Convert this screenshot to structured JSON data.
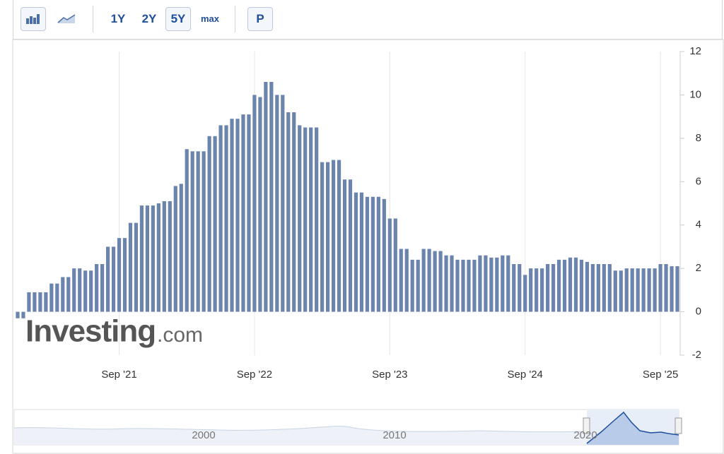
{
  "toolbar": {
    "buttons": [
      "1Y",
      "2Y",
      "5Y",
      "max",
      "P"
    ]
  },
  "watermark": {
    "brand": "Investing",
    "suffix": ".com"
  },
  "navigator": {
    "labels": [
      "2000",
      "2010",
      "2020"
    ]
  },
  "chart_data": {
    "type": "bar",
    "color": "#6a84ad",
    "grid": true,
    "categories": [
      null,
      null,
      null,
      null,
      null,
      null,
      null,
      null,
      null,
      null,
      null,
      null,
      null,
      null,
      null,
      null,
      null,
      null,
      "Sep '21",
      null,
      null,
      null,
      null,
      null,
      null,
      null,
      null,
      null,
      null,
      null,
      null,
      null,
      null,
      null,
      null,
      null,
      null,
      null,
      null,
      null,
      null,
      null,
      "Sep '22",
      null,
      null,
      null,
      null,
      null,
      null,
      null,
      null,
      null,
      null,
      null,
      null,
      null,
      null,
      null,
      null,
      null,
      null,
      null,
      null,
      null,
      null,
      null,
      "Sep '23",
      null,
      null,
      null,
      null,
      null,
      null,
      null,
      null,
      null,
      null,
      null,
      null,
      null,
      null,
      null,
      null,
      null,
      null,
      null,
      null,
      null,
      null,
      null,
      "Sep '24",
      null,
      null,
      null,
      null,
      null,
      null,
      null,
      null,
      null,
      null,
      null,
      null,
      null,
      null,
      null,
      null,
      null,
      null,
      null,
      null,
      null,
      null,
      null,
      "Sep '25",
      null,
      null,
      null
    ],
    "values": [
      -0.3,
      -0.3,
      0.9,
      0.9,
      0.9,
      0.9,
      1.3,
      1.3,
      1.6,
      1.6,
      2.0,
      2.0,
      1.9,
      1.9,
      2.2,
      2.2,
      3.0,
      3.0,
      3.4,
      3.4,
      4.1,
      4.1,
      4.9,
      4.9,
      4.9,
      5.0,
      5.1,
      5.1,
      5.8,
      5.9,
      7.5,
      7.4,
      7.4,
      7.4,
      8.1,
      8.1,
      8.6,
      8.6,
      8.9,
      8.9,
      9.1,
      9.1,
      10.0,
      9.9,
      10.6,
      10.6,
      10.0,
      10.0,
      9.2,
      9.2,
      8.6,
      8.5,
      8.5,
      8.5,
      6.9,
      6.9,
      7.0,
      7.0,
      6.1,
      6.1,
      5.5,
      5.5,
      5.3,
      5.3,
      5.3,
      5.2,
      4.3,
      4.3,
      2.9,
      2.9,
      2.4,
      2.4,
      2.9,
      2.9,
      2.8,
      2.8,
      2.6,
      2.6,
      2.4,
      2.4,
      2.4,
      2.4,
      2.6,
      2.6,
      2.5,
      2.5,
      2.6,
      2.6,
      2.2,
      2.2,
      1.7,
      2.0,
      2.0,
      2.0,
      2.2,
      2.2,
      2.4,
      2.4,
      2.5,
      2.5,
      2.4,
      2.3,
      2.2,
      2.2,
      2.2,
      2.2,
      1.9,
      1.9,
      2.0,
      2.0,
      2.0,
      2.0,
      2.0,
      2.0,
      2.2,
      2.2,
      2.1,
      2.1
    ],
    "ylim": [
      -2,
      12
    ],
    "yticks": [
      -2,
      0,
      2,
      4,
      6,
      8,
      10,
      12
    ]
  }
}
